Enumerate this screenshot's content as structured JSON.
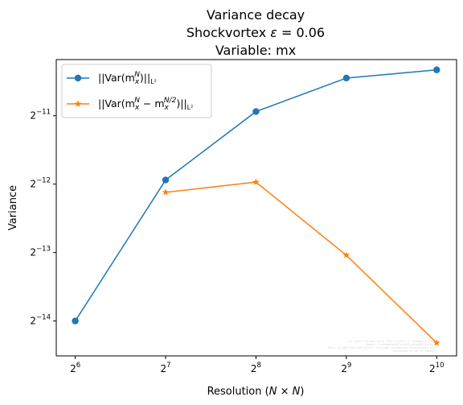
{
  "chart_data": {
    "type": "line",
    "title": [
      "Variance decay",
      "Shockvortex ε = 0.06",
      "Variable: mx"
    ],
    "xlabel": "Resolution (N × N)",
    "ylabel": "Variance",
    "xscale": "log2",
    "yscale": "log2",
    "x_ticks": [
      {
        "value": 64,
        "base": "2",
        "exp": "6"
      },
      {
        "value": 128,
        "base": "2",
        "exp": "7"
      },
      {
        "value": 256,
        "base": "2",
        "exp": "8"
      },
      {
        "value": 512,
        "base": "2",
        "exp": "9"
      },
      {
        "value": 1024,
        "base": "2",
        "exp": "10"
      }
    ],
    "y_ticks": [
      {
        "log2": -14,
        "base": "2",
        "exp": "−14"
      },
      {
        "log2": -13,
        "base": "2",
        "exp": "−13"
      },
      {
        "log2": -12,
        "base": "2",
        "exp": "−12"
      },
      {
        "log2": -11,
        "base": "2",
        "exp": "−11"
      }
    ],
    "xlim_log2": [
      5.79,
      10.22
    ],
    "ylim_log2": [
      -14.51,
      -10.18
    ],
    "legend_position": "top-left",
    "series": [
      {
        "name": "||Var(m_x^N)||_{L^2}",
        "legend_main": "||Var(m",
        "legend_sub": "x",
        "legend_sup": "N",
        "legend_tail": ")||",
        "legend_norm": "L²",
        "color": "#1f77b4",
        "marker": "circle",
        "x": [
          64,
          128,
          256,
          512,
          1024
        ],
        "y_log2": [
          -14.0,
          -11.94,
          -10.94,
          -10.45,
          -10.33
        ]
      },
      {
        "name": "||Var(m_x^N − m_x^{N/2})||_{L^2}",
        "legend_main": "||Var(m",
        "legend_sub": "x",
        "legend_sup": "N",
        "legend_mid": " − m",
        "legend_sub2": "x",
        "legend_sup2": "N/2",
        "legend_tail": ")||",
        "legend_norm": "L²",
        "color": "#ff7f0e",
        "marker": "star",
        "x": [
          128,
          256,
          512,
          1024
        ],
        "y_log2": [
          -12.12,
          -11.97,
          -13.04,
          -14.32
        ]
      }
    ]
  },
  "watermark": [
    "By Kjetil Olsen Lye @ ETHZ <kjetil.o.lye@gmail.com>",
    "Commit: 1eb4a8e4d9ef3cb5d11e8ce4b97fd7b1b",
    "Repo: git@github.com:kjetil-lye/ismo_validation_experiments.git",
    "Estimated 15 KB of images"
  ],
  "colors": {
    "axes": "#000000",
    "background": "#ffffff"
  }
}
